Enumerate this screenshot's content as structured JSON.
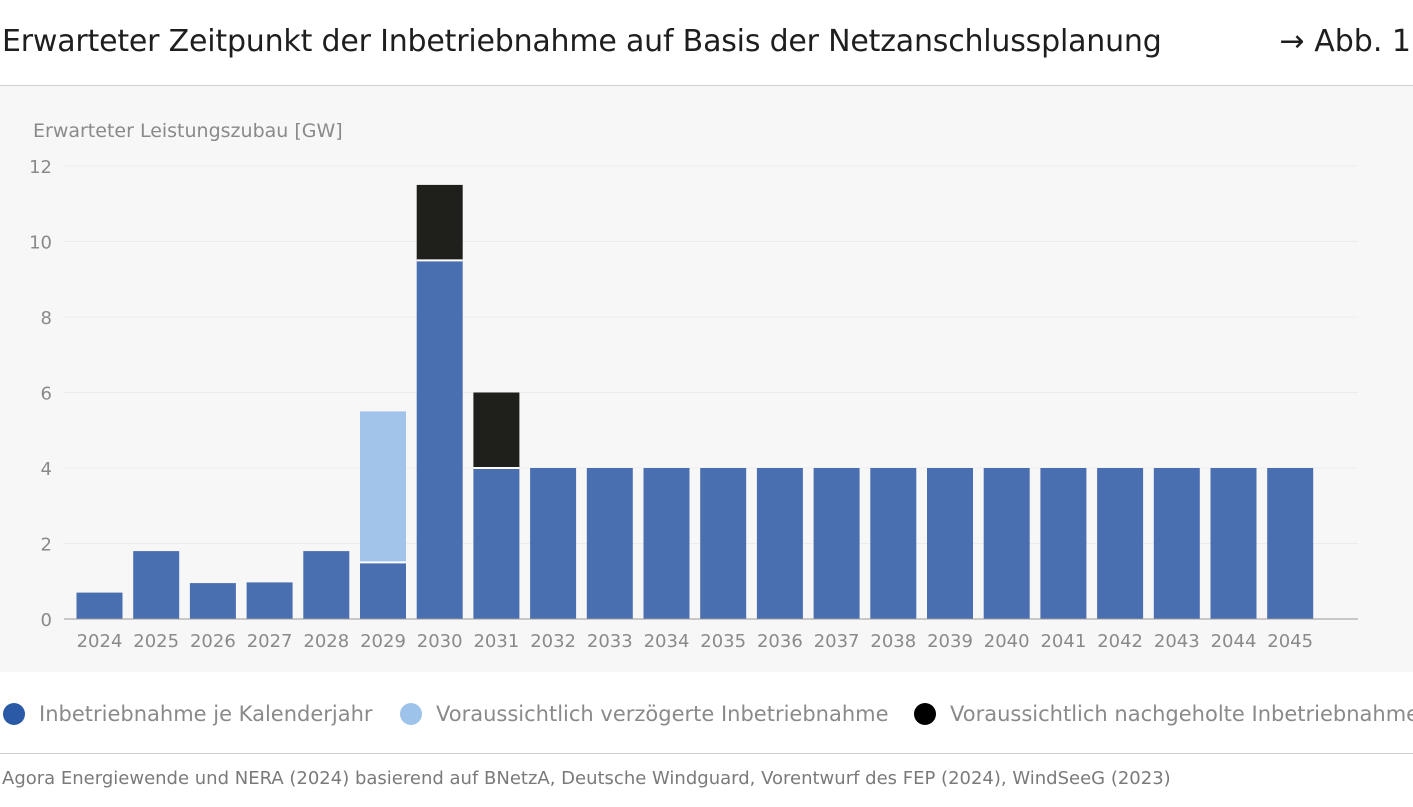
{
  "header": {
    "title": "Erwarteter Zeitpunkt der Inbetriebnahme auf Basis der Netzanschlussplanung",
    "figure_ref": "→ Abb. 1"
  },
  "legend": {
    "items": [
      {
        "label": "Inbetriebnahme je Kalenderjahr",
        "color": "#2a5aa6"
      },
      {
        "label": "Voraussichtlich verzögerte Inbetriebnahme",
        "color": "#9ec3ea"
      },
      {
        "label": "Voraussichtlich nachgeholte Inbetriebnahme",
        "color": "#000000"
      }
    ]
  },
  "source": "Agora Energiewende und NERA (2024) basierend auf BNetzA, Deutsche Windguard, Vorentwurf des FEP (2024), WindSeeG (2023)",
  "chart_data": {
    "type": "bar",
    "stacked": true,
    "ylabel": "Erwarteter Leistungszubau [GW]",
    "ylim": [
      0,
      12
    ],
    "yticks": [
      0,
      2,
      4,
      6,
      8,
      10,
      12
    ],
    "grid": true,
    "legend_position": "bottom",
    "categories": [
      "2024",
      "2025",
      "2026",
      "2027",
      "2028",
      "2029",
      "2030",
      "2031",
      "2032",
      "2033",
      "2034",
      "2035",
      "2036",
      "2037",
      "2038",
      "2039",
      "2040",
      "2041",
      "2042",
      "2043",
      "2044",
      "2045"
    ],
    "series": [
      {
        "name": "Inbetriebnahme je Kalenderjahr",
        "color": "#4a6fb0",
        "values": [
          0.7,
          1.8,
          0.95,
          0.97,
          1.8,
          1.5,
          9.5,
          4,
          4,
          4,
          4,
          4,
          4,
          4,
          4,
          4,
          4,
          4,
          4,
          4,
          4,
          4
        ]
      },
      {
        "name": "Voraussichtlich verzögerte Inbetriebnahme",
        "color": "#a3c4ea",
        "values": [
          0,
          0,
          0,
          0,
          0,
          4,
          0,
          0,
          0,
          0,
          0,
          0,
          0,
          0,
          0,
          0,
          0,
          0,
          0,
          0,
          0,
          0
        ]
      },
      {
        "name": "Voraussichtlich nachgeholte Inbetriebnahme",
        "color": "#1f1f1c",
        "values": [
          0,
          0,
          0,
          0,
          0,
          0,
          2,
          2,
          0,
          0,
          0,
          0,
          0,
          0,
          0,
          0,
          0,
          0,
          0,
          0,
          0,
          0
        ]
      }
    ]
  }
}
